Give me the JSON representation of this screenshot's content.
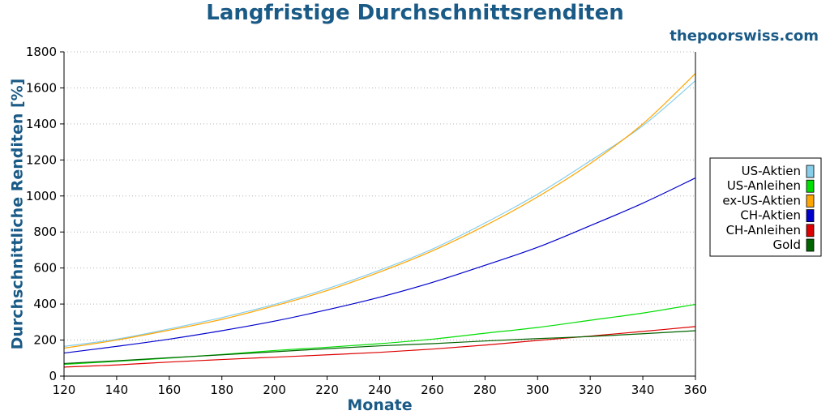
{
  "header": {
    "title": "Langfristige Durchschnittsrenditen",
    "brand": "thepoorswiss.com"
  },
  "chart_data": {
    "type": "line",
    "title": "Langfristige Durchschnittsrenditen",
    "xlabel": "Monate",
    "ylabel": "Durchschnittliche Renditen [%]",
    "xlim": [
      120,
      360
    ],
    "ylim": [
      0,
      1800
    ],
    "xticks": [
      120,
      140,
      160,
      180,
      200,
      220,
      240,
      260,
      280,
      300,
      320,
      340,
      360
    ],
    "yticks": [
      0,
      200,
      400,
      600,
      800,
      1000,
      1200,
      1400,
      1600,
      1800
    ],
    "grid": "horizontal-dotted",
    "legend_position": "right",
    "x": [
      120,
      140,
      160,
      180,
      200,
      220,
      240,
      260,
      280,
      300,
      320,
      340,
      360
    ],
    "series": [
      {
        "name": "US-Aktien",
        "color": "#87ceeb",
        "values": [
          165,
          205,
          262,
          325,
          398,
          485,
          588,
          705,
          850,
          1010,
          1195,
          1390,
          1640
        ]
      },
      {
        "name": "US-Anleihen",
        "color": "#00dd00",
        "values": [
          65,
          82,
          100,
          120,
          142,
          160,
          180,
          205,
          238,
          270,
          310,
          350,
          398
        ]
      },
      {
        "name": "ex-US-Aktien",
        "color": "#ffa500",
        "values": [
          155,
          200,
          255,
          315,
          390,
          475,
          578,
          695,
          835,
          995,
          1180,
          1400,
          1680
        ]
      },
      {
        "name": "CH-Aktien",
        "color": "#0000cc",
        "values": [
          128,
          165,
          205,
          252,
          305,
          368,
          438,
          520,
          615,
          715,
          835,
          960,
          1100
        ]
      },
      {
        "name": "CH-Anleihen",
        "color": "#dd0000",
        "values": [
          50,
          62,
          78,
          92,
          105,
          118,
          132,
          150,
          172,
          198,
          222,
          248,
          275
        ]
      },
      {
        "name": "Gold",
        "color": "#006400",
        "values": [
          70,
          85,
          102,
          118,
          135,
          152,
          168,
          180,
          195,
          208,
          220,
          235,
          252
        ]
      }
    ]
  }
}
